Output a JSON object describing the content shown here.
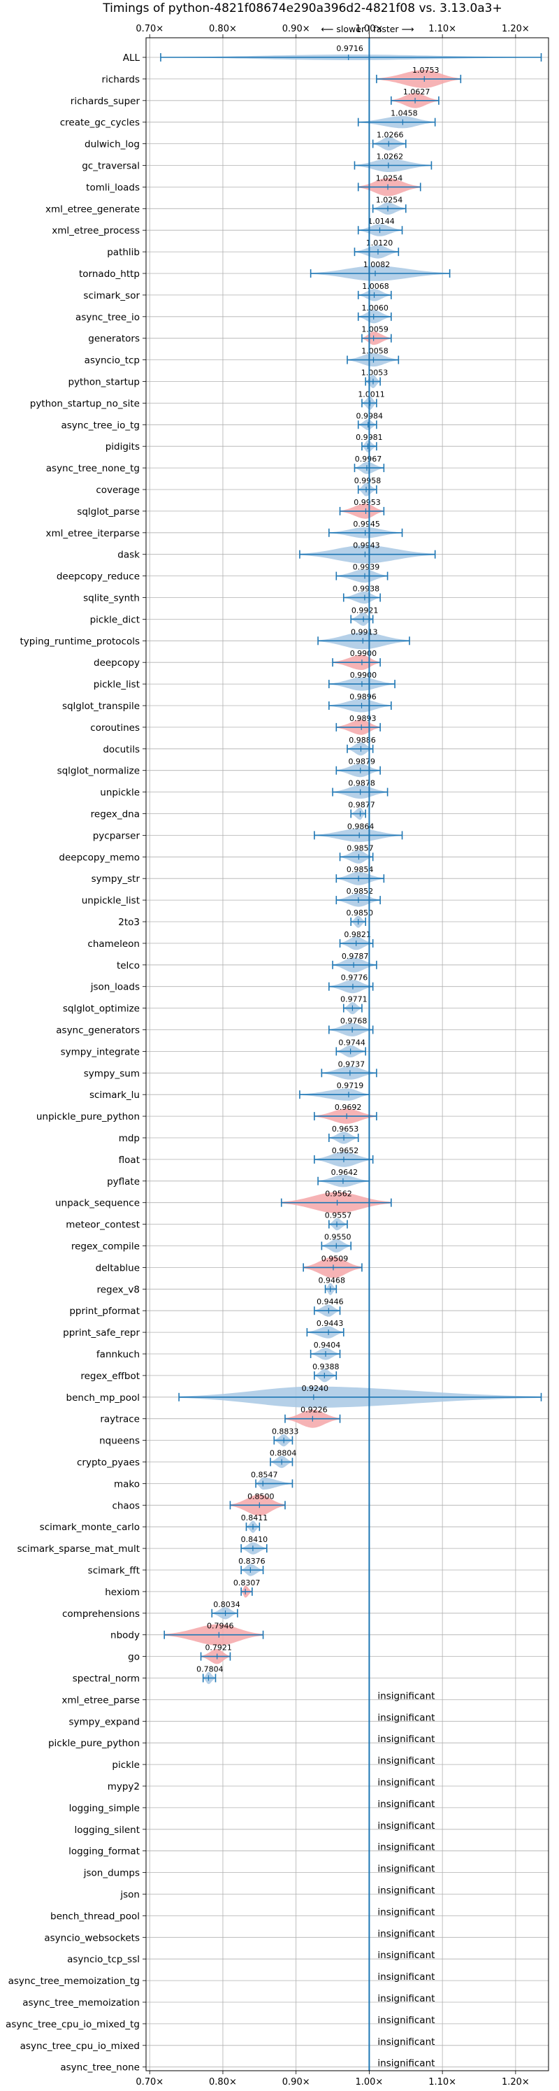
{
  "chart_data": {
    "type": "violin",
    "title": "Timings of python-4821f08674e290a396d2-4821f08 vs. 3.13.0a3+",
    "xlabel": "⟵ slower | faster ⟶",
    "xlim": [
      0.695,
      1.245
    ],
    "xticks": [
      0.7,
      0.8,
      0.9,
      1.0,
      1.1,
      1.2
    ],
    "xtick_labels": [
      "0.70×",
      "0.80×",
      "0.90×",
      "1.00×",
      "1.10×",
      "1.20×"
    ],
    "grid": true,
    "reference_line": 1.0,
    "colors": {
      "faster": "#a8c8e4",
      "slower": "#f4a6a8",
      "line": "#1f77b4",
      "median": "#1f77b4"
    },
    "benchmarks": [
      {
        "name": "ALL",
        "value": 0.9716,
        "display": "0.9716",
        "min": 0.715,
        "max": 1.235,
        "width": 0.02,
        "color": "faster"
      },
      {
        "name": "richards",
        "value": 1.0753,
        "display": "1.0753",
        "min": 1.01,
        "max": 1.125,
        "width": 0.3,
        "color": "slower"
      },
      {
        "name": "richards_super",
        "value": 1.0627,
        "display": "1.0627",
        "min": 1.03,
        "max": 1.095,
        "width": 0.25,
        "color": "slower"
      },
      {
        "name": "create_gc_cycles",
        "value": 1.0458,
        "display": "1.0458",
        "min": 0.985,
        "max": 1.09,
        "width": 0.2,
        "color": "faster"
      },
      {
        "name": "dulwich_log",
        "value": 1.0266,
        "display": "1.0266",
        "min": 1.005,
        "max": 1.05,
        "width": 0.22,
        "color": "faster"
      },
      {
        "name": "gc_traversal",
        "value": 1.0262,
        "display": "1.0262",
        "min": 0.98,
        "max": 1.085,
        "width": 0.22,
        "color": "faster"
      },
      {
        "name": "tomli_loads",
        "value": 1.0254,
        "display": "1.0254",
        "min": 0.985,
        "max": 1.07,
        "width": 0.3,
        "color": "slower"
      },
      {
        "name": "xml_etree_generate",
        "value": 1.0254,
        "display": "1.0254",
        "min": 1.005,
        "max": 1.05,
        "width": 0.2,
        "color": "faster"
      },
      {
        "name": "xml_etree_process",
        "value": 1.0144,
        "display": "1.0144",
        "min": 0.985,
        "max": 1.045,
        "width": 0.2,
        "color": "faster"
      },
      {
        "name": "pathlib",
        "value": 1.012,
        "display": "1.0120",
        "min": 0.98,
        "max": 1.04,
        "width": 0.22,
        "color": "faster"
      },
      {
        "name": "tornado_http",
        "value": 1.0082,
        "display": "1.0082",
        "min": 0.92,
        "max": 1.11,
        "width": 0.25,
        "color": "faster"
      },
      {
        "name": "scimark_sor",
        "value": 1.0068,
        "display": "1.0068",
        "min": 0.985,
        "max": 1.03,
        "width": 0.2,
        "color": "faster"
      },
      {
        "name": "async_tree_io",
        "value": 1.006,
        "display": "1.0060",
        "min": 0.985,
        "max": 1.03,
        "width": 0.22,
        "color": "faster"
      },
      {
        "name": "generators",
        "value": 1.0059,
        "display": "1.0059",
        "min": 0.99,
        "max": 1.03,
        "width": 0.22,
        "color": "slower"
      },
      {
        "name": "asyncio_tcp",
        "value": 1.0058,
        "display": "1.0058",
        "min": 0.97,
        "max": 1.04,
        "width": 0.22,
        "color": "faster"
      },
      {
        "name": "python_startup",
        "value": 1.0053,
        "display": "1.0053",
        "min": 0.995,
        "max": 1.015,
        "width": 0.22,
        "color": "faster"
      },
      {
        "name": "python_startup_no_site",
        "value": 1.0011,
        "display": "1.0011",
        "min": 0.99,
        "max": 1.01,
        "width": 0.22,
        "color": "faster"
      },
      {
        "name": "async_tree_io_tg",
        "value": 0.9984,
        "display": "0.9984",
        "min": 0.985,
        "max": 1.01,
        "width": 0.18,
        "color": "faster"
      },
      {
        "name": "pidigits",
        "value": 0.9981,
        "display": "0.9981",
        "min": 0.99,
        "max": 1.01,
        "width": 0.2,
        "color": "faster"
      },
      {
        "name": "async_tree_none_tg",
        "value": 0.9967,
        "display": "0.9967",
        "min": 0.98,
        "max": 1.02,
        "width": 0.2,
        "color": "faster"
      },
      {
        "name": "coverage",
        "value": 0.9958,
        "display": "0.9958",
        "min": 0.985,
        "max": 1.01,
        "width": 0.22,
        "color": "faster"
      },
      {
        "name": "sqlglot_parse",
        "value": 0.9953,
        "display": "0.9953",
        "min": 0.96,
        "max": 1.02,
        "width": 0.25,
        "color": "slower"
      },
      {
        "name": "xml_etree_iterparse",
        "value": 0.9945,
        "display": "0.9945",
        "min": 0.945,
        "max": 1.045,
        "width": 0.18,
        "color": "faster"
      },
      {
        "name": "dask",
        "value": 0.9943,
        "display": "0.9943",
        "min": 0.905,
        "max": 1.09,
        "width": 0.3,
        "color": "faster"
      },
      {
        "name": "deepcopy_reduce",
        "value": 0.9939,
        "display": "0.9939",
        "min": 0.955,
        "max": 1.025,
        "width": 0.22,
        "color": "faster"
      },
      {
        "name": "sqlite_synth",
        "value": 0.9938,
        "display": "0.9938",
        "min": 0.965,
        "max": 1.015,
        "width": 0.2,
        "color": "faster"
      },
      {
        "name": "pickle_dict",
        "value": 0.9921,
        "display": "0.9921",
        "min": 0.975,
        "max": 1.005,
        "width": 0.22,
        "color": "faster"
      },
      {
        "name": "typing_runtime_protocols",
        "value": 0.9913,
        "display": "0.9913",
        "min": 0.93,
        "max": 1.055,
        "width": 0.28,
        "color": "faster"
      },
      {
        "name": "deepcopy",
        "value": 0.99,
        "display": "0.9900",
        "min": 0.95,
        "max": 1.015,
        "width": 0.25,
        "color": "slower"
      },
      {
        "name": "pickle_list",
        "value": 0.99,
        "display": "0.9900",
        "min": 0.945,
        "max": 1.035,
        "width": 0.22,
        "color": "faster"
      },
      {
        "name": "sqlglot_transpile",
        "value": 0.9896,
        "display": "0.9896",
        "min": 0.945,
        "max": 1.03,
        "width": 0.22,
        "color": "faster"
      },
      {
        "name": "coroutines",
        "value": 0.9893,
        "display": "0.9893",
        "min": 0.955,
        "max": 1.015,
        "width": 0.25,
        "color": "slower"
      },
      {
        "name": "docutils",
        "value": 0.9886,
        "display": "0.9886",
        "min": 0.97,
        "max": 1.005,
        "width": 0.22,
        "color": "faster"
      },
      {
        "name": "sqlglot_normalize",
        "value": 0.9879,
        "display": "0.9879",
        "min": 0.955,
        "max": 1.015,
        "width": 0.22,
        "color": "faster"
      },
      {
        "name": "unpickle",
        "value": 0.9878,
        "display": "0.9878",
        "min": 0.95,
        "max": 1.025,
        "width": 0.22,
        "color": "faster"
      },
      {
        "name": "regex_dna",
        "value": 0.9877,
        "display": "0.9877",
        "min": 0.975,
        "max": 0.995,
        "width": 0.2,
        "color": "faster"
      },
      {
        "name": "pycparser",
        "value": 0.9864,
        "display": "0.9864",
        "min": 0.925,
        "max": 1.045,
        "width": 0.22,
        "color": "faster"
      },
      {
        "name": "deepcopy_memo",
        "value": 0.9857,
        "display": "0.9857",
        "min": 0.96,
        "max": 1.005,
        "width": 0.22,
        "color": "faster"
      },
      {
        "name": "sympy_str",
        "value": 0.9854,
        "display": "0.9854",
        "min": 0.955,
        "max": 1.02,
        "width": 0.22,
        "color": "faster"
      },
      {
        "name": "unpickle_list",
        "value": 0.9852,
        "display": "0.9852",
        "min": 0.955,
        "max": 1.015,
        "width": 0.22,
        "color": "faster"
      },
      {
        "name": "2to3",
        "value": 0.985,
        "display": "0.9850",
        "min": 0.975,
        "max": 0.995,
        "width": 0.2,
        "color": "faster"
      },
      {
        "name": "chameleon",
        "value": 0.9821,
        "display": "0.9821",
        "min": 0.96,
        "max": 1.005,
        "width": 0.22,
        "color": "faster"
      },
      {
        "name": "telco",
        "value": 0.9787,
        "display": "0.9787",
        "min": 0.95,
        "max": 1.01,
        "width": 0.25,
        "color": "faster"
      },
      {
        "name": "json_loads",
        "value": 0.9776,
        "display": "0.9776",
        "min": 0.945,
        "max": 1.005,
        "width": 0.22,
        "color": "faster"
      },
      {
        "name": "sqlglot_optimize",
        "value": 0.9771,
        "display": "0.9771",
        "min": 0.965,
        "max": 0.99,
        "width": 0.2,
        "color": "faster"
      },
      {
        "name": "async_generators",
        "value": 0.9768,
        "display": "0.9768",
        "min": 0.945,
        "max": 1.005,
        "width": 0.22,
        "color": "faster"
      },
      {
        "name": "sympy_integrate",
        "value": 0.9744,
        "display": "0.9744",
        "min": 0.955,
        "max": 0.995,
        "width": 0.2,
        "color": "faster"
      },
      {
        "name": "sympy_sum",
        "value": 0.9737,
        "display": "0.9737",
        "min": 0.935,
        "max": 1.01,
        "width": 0.22,
        "color": "faster"
      },
      {
        "name": "scimark_lu",
        "value": 0.9719,
        "display": "0.9719",
        "min": 0.905,
        "max": 1.0,
        "width": 0.2,
        "color": "faster"
      },
      {
        "name": "unpickle_pure_python",
        "value": 0.9692,
        "display": "0.9692",
        "min": 0.925,
        "max": 1.01,
        "width": 0.25,
        "color": "slower"
      },
      {
        "name": "mdp",
        "value": 0.9653,
        "display": "0.9653",
        "min": 0.945,
        "max": 0.985,
        "width": 0.2,
        "color": "faster"
      },
      {
        "name": "float",
        "value": 0.9652,
        "display": "0.9652",
        "min": 0.925,
        "max": 1.005,
        "width": 0.25,
        "color": "faster"
      },
      {
        "name": "pyflate",
        "value": 0.9642,
        "display": "0.9642",
        "min": 0.93,
        "max": 1.0,
        "width": 0.2,
        "color": "faster"
      },
      {
        "name": "unpack_sequence",
        "value": 0.9562,
        "display": "0.9562",
        "min": 0.88,
        "max": 1.03,
        "width": 0.35,
        "color": "slower"
      },
      {
        "name": "meteor_contest",
        "value": 0.9557,
        "display": "0.9557",
        "min": 0.945,
        "max": 0.97,
        "width": 0.2,
        "color": "faster"
      },
      {
        "name": "regex_compile",
        "value": 0.955,
        "display": "0.9550",
        "min": 0.935,
        "max": 0.975,
        "width": 0.22,
        "color": "faster"
      },
      {
        "name": "deltablue",
        "value": 0.9509,
        "display": "0.9509",
        "min": 0.91,
        "max": 0.99,
        "width": 0.35,
        "color": "slower"
      },
      {
        "name": "regex_v8",
        "value": 0.9468,
        "display": "0.9468",
        "min": 0.94,
        "max": 0.955,
        "width": 0.2,
        "color": "faster"
      },
      {
        "name": "pprint_pformat",
        "value": 0.9446,
        "display": "0.9446",
        "min": 0.925,
        "max": 0.96,
        "width": 0.2,
        "color": "faster"
      },
      {
        "name": "pprint_safe_repr",
        "value": 0.9443,
        "display": "0.9443",
        "min": 0.915,
        "max": 0.965,
        "width": 0.2,
        "color": "faster"
      },
      {
        "name": "fannkuch",
        "value": 0.9404,
        "display": "0.9404",
        "min": 0.92,
        "max": 0.96,
        "width": 0.2,
        "color": "faster"
      },
      {
        "name": "regex_effbot",
        "value": 0.9388,
        "display": "0.9388",
        "min": 0.925,
        "max": 0.955,
        "width": 0.22,
        "color": "faster"
      },
      {
        "name": "bench_mp_pool",
        "value": 0.924,
        "display": "0.9240",
        "min": 0.74,
        "max": 1.235,
        "width": 0.35,
        "color": "faster"
      },
      {
        "name": "raytrace",
        "value": 0.9226,
        "display": "0.9226",
        "min": 0.885,
        "max": 0.96,
        "width": 0.3,
        "color": "slower"
      },
      {
        "name": "nqueens",
        "value": 0.8833,
        "display": "0.8833",
        "min": 0.87,
        "max": 0.895,
        "width": 0.2,
        "color": "faster"
      },
      {
        "name": "crypto_pyaes",
        "value": 0.8804,
        "display": "0.8804",
        "min": 0.865,
        "max": 0.895,
        "width": 0.2,
        "color": "faster"
      },
      {
        "name": "mako",
        "value": 0.8547,
        "display": "0.8547",
        "min": 0.845,
        "max": 0.895,
        "width": 0.2,
        "color": "faster"
      },
      {
        "name": "chaos",
        "value": 0.85,
        "display": "0.8500",
        "min": 0.81,
        "max": 0.885,
        "width": 0.35,
        "color": "slower"
      },
      {
        "name": "scimark_monte_carlo",
        "value": 0.8411,
        "display": "0.8411",
        "min": 0.832,
        "max": 0.85,
        "width": 0.2,
        "color": "faster"
      },
      {
        "name": "scimark_sparse_mat_mult",
        "value": 0.841,
        "display": "0.8410",
        "min": 0.825,
        "max": 0.86,
        "width": 0.2,
        "color": "faster"
      },
      {
        "name": "scimark_fft",
        "value": 0.8376,
        "display": "0.8376",
        "min": 0.825,
        "max": 0.855,
        "width": 0.2,
        "color": "faster"
      },
      {
        "name": "hexiom",
        "value": 0.8307,
        "display": "0.8307",
        "min": 0.825,
        "max": 0.84,
        "width": 0.2,
        "color": "slower"
      },
      {
        "name": "comprehensions",
        "value": 0.8034,
        "display": "0.8034",
        "min": 0.785,
        "max": 0.82,
        "width": 0.2,
        "color": "faster"
      },
      {
        "name": "nbody",
        "value": 0.7946,
        "display": "0.7946",
        "min": 0.72,
        "max": 0.855,
        "width": 0.35,
        "color": "slower"
      },
      {
        "name": "go",
        "value": 0.7921,
        "display": "0.7921",
        "min": 0.77,
        "max": 0.81,
        "width": 0.25,
        "color": "slower"
      },
      {
        "name": "spectral_norm",
        "value": 0.7804,
        "display": "0.7804",
        "min": 0.773,
        "max": 0.79,
        "width": 0.2,
        "color": "faster"
      }
    ],
    "insignificant_label": "insignificant",
    "insignificant": [
      "xml_etree_parse",
      "sympy_expand",
      "pickle_pure_python",
      "pickle",
      "mypy2",
      "logging_simple",
      "logging_silent",
      "logging_format",
      "json_dumps",
      "json",
      "bench_thread_pool",
      "asyncio_websockets",
      "asyncio_tcp_ssl",
      "async_tree_memoization_tg",
      "async_tree_memoization",
      "async_tree_cpu_io_mixed_tg",
      "async_tree_cpu_io_mixed",
      "async_tree_none"
    ]
  }
}
